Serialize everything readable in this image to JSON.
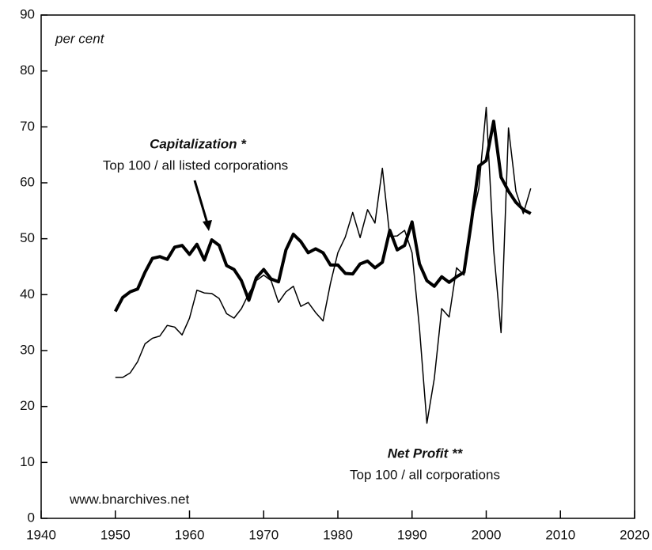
{
  "chart_data": {
    "type": "line",
    "y_axis_label": "per cent",
    "annotations": [
      "Top 100 / all listed corporations",
      "Top 100 / all corporations",
      "www.bnarchives.net"
    ],
    "x": [
      1950,
      1951,
      1952,
      1953,
      1954,
      1955,
      1956,
      1957,
      1958,
      1959,
      1960,
      1961,
      1962,
      1963,
      1964,
      1965,
      1966,
      1967,
      1968,
      1969,
      1970,
      1971,
      1972,
      1973,
      1974,
      1975,
      1976,
      1977,
      1978,
      1979,
      1980,
      1981,
      1982,
      1983,
      1984,
      1985,
      1986,
      1987,
      1988,
      1989,
      1990,
      1991,
      1992,
      1993,
      1994,
      1995,
      1996,
      1997,
      1998,
      1999,
      2000,
      2001,
      2002,
      2003,
      2004,
      2005,
      2006
    ],
    "series": [
      {
        "name": "Capitalization *",
        "color": "#000000",
        "values": [
          37,
          39.5,
          40.5,
          41,
          44,
          46.5,
          46.8,
          46.3,
          48.5,
          48.8,
          47.2,
          49,
          46.2,
          49.8,
          48.8,
          45.2,
          44.5,
          42.5,
          39,
          43,
          44.5,
          42.8,
          42.3,
          48,
          50.8,
          49.5,
          47.5,
          48.2,
          47.5,
          45.3,
          45.3,
          43.8,
          43.7,
          45.5,
          46,
          44.8,
          45.8,
          51.5,
          48,
          48.8,
          53,
          45.5,
          42.5,
          41.5,
          43.2,
          42.2,
          43.2,
          44,
          53,
          63,
          64,
          71,
          61,
          58.5,
          56.5,
          55.2,
          54.5
        ]
      },
      {
        "name": "Net Profit **",
        "color": "#000000",
        "values": [
          25.2,
          25.2,
          26,
          28,
          31.2,
          32.2,
          32.6,
          34.5,
          34.2,
          32.8,
          35.8,
          40.8,
          40.3,
          40.2,
          39.3,
          36.6,
          35.8,
          37.5,
          40.2,
          42.5,
          43.5,
          42.5,
          38.6,
          40.5,
          41.5,
          37.9,
          38.6,
          36.8,
          35.3,
          42,
          47.5,
          50.3,
          54.7,
          50.2,
          55.2,
          52.8,
          62.6,
          50.4,
          50.5,
          51.5,
          47.5,
          34,
          17,
          25,
          37.5,
          36,
          44.8,
          43.5,
          53,
          59,
          73.5,
          48,
          33.2,
          69.8,
          58.5,
          54.5,
          59
        ]
      }
    ],
    "xlim": [
      1940,
      2020
    ],
    "xticks": [
      1940,
      1950,
      1960,
      1970,
      1980,
      1990,
      2000,
      2010,
      2020
    ],
    "ylim": [
      0,
      90
    ],
    "yticks": [
      0,
      10,
      20,
      30,
      40,
      50,
      60,
      70,
      80,
      90
    ]
  }
}
